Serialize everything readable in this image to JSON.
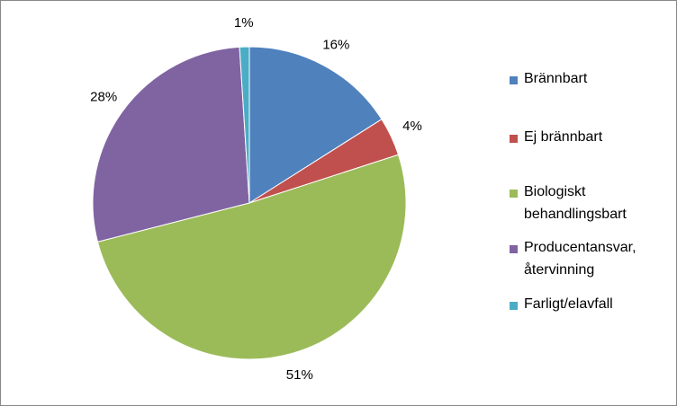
{
  "chart_data": {
    "type": "pie",
    "categories": [
      "Brännbart",
      "Ej brännbart",
      "Biologiskt behandlingsbart",
      "Producentansvar, återvinning",
      "Farligt/elavfall"
    ],
    "values": [
      16,
      4,
      51,
      28,
      1
    ],
    "value_labels": [
      "16%",
      "4%",
      "51%",
      "28%",
      "1%"
    ],
    "colors": [
      "#4f81bd",
      "#c0504d",
      "#9bbb59",
      "#8064a2",
      "#4bacc6"
    ],
    "legend": "right"
  }
}
